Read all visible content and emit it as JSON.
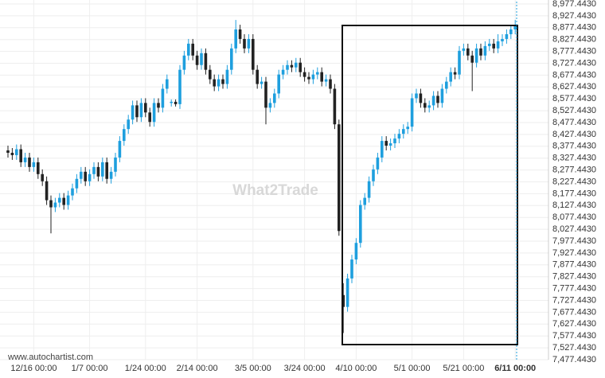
{
  "chart_data": {
    "type": "candlestick",
    "source": "www.autochartist.com",
    "watermark": "What2Trade",
    "categories": [
      null,
      null,
      null,
      null,
      null,
      null,
      "12/16 00:00",
      null,
      null,
      null,
      null,
      null,
      null,
      null,
      null,
      null,
      null,
      null,
      null,
      "1/7 00:00",
      null,
      null,
      null,
      null,
      null,
      null,
      null,
      null,
      null,
      null,
      null,
      null,
      "1/24 00:00",
      null,
      null,
      null,
      null,
      null,
      null,
      null,
      null,
      null,
      null,
      null,
      "2/14 00:00",
      null,
      null,
      null,
      null,
      null,
      null,
      null,
      null,
      null,
      null,
      null,
      null,
      "3/5 00:00",
      null,
      null,
      null,
      null,
      null,
      null,
      null,
      null,
      null,
      null,
      null,
      "3/24 00:00",
      null,
      null,
      null,
      null,
      null,
      null,
      null,
      null,
      null,
      null,
      null,
      "4/10 00:00",
      null,
      null,
      null,
      null,
      null,
      null,
      null,
      null,
      null,
      null,
      null,
      null,
      "5/1 00:00",
      null,
      null,
      null,
      null,
      null,
      null,
      null,
      null,
      null,
      null,
      null,
      "5/21 00:00",
      null,
      null,
      null,
      null,
      null,
      null,
      null,
      null,
      null,
      null,
      null,
      "6/11 00:00"
    ],
    "open": [
      8360,
      8350,
      8340,
      8365,
      8310,
      8330,
      8290,
      8310,
      8260,
      8230,
      8150,
      8120,
      8140,
      8160,
      8130,
      8170,
      8200,
      8240,
      8270,
      8230,
      8260,
      8290,
      8250,
      8310,
      8240,
      8270,
      8330,
      8400,
      8450,
      8490,
      8550,
      8500,
      8560,
      8520,
      8480,
      8560,
      8540,
      8620,
      8560,
      8565,
      8555,
      8700,
      8760,
      8810,
      8760,
      8720,
      8770,
      8700,
      8660,
      8630,
      8660,
      8640,
      8700,
      8790,
      8870,
      8830,
      8790,
      8830,
      8700,
      8640,
      8650,
      8540,
      8560,
      8600,
      8680,
      8700,
      8720,
      8710,
      8730,
      8690,
      8670,
      8660,
      8680,
      8690,
      8650,
      8660,
      8620,
      8470,
      7750,
      7700,
      7820,
      7900,
      7970,
      8130,
      8160,
      8230,
      8280,
      8330,
      8400,
      8380,
      8390,
      8410,
      8430,
      8450,
      8460,
      8580,
      8600,
      8560,
      8540,
      8550,
      8590,
      8560,
      8620,
      8650,
      8690,
      8680,
      8780,
      8790,
      8760,
      8730,
      8790,
      8760,
      8800,
      8810,
      8790,
      8820,
      8830,
      8850,
      8870
    ],
    "high": [
      8380,
      8370,
      8385,
      8385,
      8350,
      8350,
      8330,
      8330,
      8280,
      8250,
      8170,
      8160,
      8180,
      8180,
      8190,
      8220,
      8260,
      8290,
      8290,
      8280,
      8310,
      8310,
      8330,
      8330,
      8290,
      8350,
      8420,
      8470,
      8510,
      8570,
      8570,
      8580,
      8580,
      8540,
      8580,
      8580,
      8640,
      8680,
      8575,
      8575,
      8720,
      8780,
      8830,
      8830,
      8780,
      8790,
      8790,
      8720,
      8680,
      8680,
      8680,
      8720,
      8810,
      8910,
      8890,
      8850,
      8850,
      8850,
      8720,
      8670,
      8670,
      8580,
      8620,
      8700,
      8720,
      8740,
      8740,
      8750,
      8750,
      8710,
      8690,
      8700,
      8710,
      8710,
      8680,
      8680,
      8640,
      8490,
      7800,
      7840,
      7920,
      7990,
      8150,
      8180,
      8250,
      8300,
      8350,
      8420,
      8420,
      8410,
      8430,
      8450,
      8470,
      8480,
      8600,
      8620,
      8620,
      8580,
      8570,
      8610,
      8610,
      8640,
      8670,
      8710,
      8710,
      8800,
      8810,
      8810,
      8780,
      8810,
      8810,
      8820,
      8830,
      8830,
      8850,
      8850,
      8870,
      8890,
      8910
    ],
    "low": [
      8330,
      8320,
      8320,
      8290,
      8290,
      8270,
      8270,
      8240,
      8210,
      8130,
      8010,
      8100,
      8120,
      8110,
      8110,
      8150,
      8180,
      8220,
      8210,
      8210,
      8240,
      8230,
      8230,
      8220,
      8220,
      8250,
      8310,
      8380,
      8430,
      8470,
      8480,
      8480,
      8500,
      8460,
      8460,
      8520,
      8520,
      8600,
      8545,
      8545,
      8535,
      8680,
      8740,
      8740,
      8700,
      8700,
      8680,
      8640,
      8610,
      8610,
      8620,
      8620,
      8680,
      8770,
      8810,
      8770,
      8770,
      8680,
      8620,
      8620,
      8470,
      8520,
      8540,
      8580,
      8660,
      8680,
      8690,
      8690,
      8670,
      8650,
      8640,
      8640,
      8660,
      8630,
      8630,
      8600,
      8450,
      8000,
      7590,
      7680,
      7800,
      7880,
      7950,
      8110,
      8140,
      8210,
      8260,
      8310,
      8360,
      8360,
      8370,
      8390,
      8410,
      8430,
      8440,
      8560,
      8540,
      8520,
      8520,
      8530,
      8540,
      8540,
      8600,
      8630,
      8660,
      8660,
      8760,
      8740,
      8610,
      8710,
      8740,
      8740,
      8780,
      8770,
      8770,
      8800,
      8810,
      8830,
      8850
    ],
    "close": [
      8350,
      8340,
      8365,
      8310,
      8330,
      8290,
      8310,
      8260,
      8230,
      8150,
      8120,
      8140,
      8160,
      8130,
      8170,
      8200,
      8240,
      8270,
      8230,
      8260,
      8290,
      8250,
      8310,
      8240,
      8270,
      8330,
      8400,
      8450,
      8490,
      8550,
      8500,
      8560,
      8520,
      8480,
      8560,
      8540,
      8620,
      8660,
      8565,
      8555,
      8700,
      8760,
      8810,
      8760,
      8720,
      8770,
      8700,
      8660,
      8630,
      8660,
      8640,
      8700,
      8790,
      8870,
      8830,
      8790,
      8830,
      8700,
      8640,
      8650,
      8540,
      8560,
      8600,
      8680,
      8700,
      8720,
      8710,
      8730,
      8690,
      8670,
      8660,
      8680,
      8690,
      8650,
      8660,
      8620,
      8470,
      8020,
      7700,
      7820,
      7900,
      7970,
      8130,
      8160,
      8230,
      8280,
      8330,
      8400,
      8380,
      8390,
      8410,
      8430,
      8450,
      8460,
      8580,
      8600,
      8560,
      8540,
      8550,
      8590,
      8560,
      8620,
      8650,
      8690,
      8680,
      8780,
      8790,
      8760,
      8730,
      8790,
      8760,
      8800,
      8810,
      8790,
      8820,
      8830,
      8850,
      8870,
      8890
    ],
    "up_color": "#1e9fde",
    "down_color": "#222222",
    "ylim": [
      7477.443,
      8977.443
    ],
    "yticks": [
      {
        "value": 8977.443,
        "label": "8,977.4430"
      },
      {
        "value": 8927.443,
        "label": "8,927.4430"
      },
      {
        "value": 8877.443,
        "label": "8,877.4430"
      },
      {
        "value": 8827.443,
        "label": "8,827.4430"
      },
      {
        "value": 8777.443,
        "label": "8,777.4430"
      },
      {
        "value": 8727.443,
        "label": "8,727.4430"
      },
      {
        "value": 8677.443,
        "label": "8,677.4430"
      },
      {
        "value": 8627.443,
        "label": "8,627.4430"
      },
      {
        "value": 8577.443,
        "label": "8,577.4430"
      },
      {
        "value": 8527.443,
        "label": "8,527.4430"
      },
      {
        "value": 8477.443,
        "label": "8,477.4430"
      },
      {
        "value": 8427.443,
        "label": "8,427.4430"
      },
      {
        "value": 8377.443,
        "label": "8,377.4430"
      },
      {
        "value": 8327.443,
        "label": "8,327.4430"
      },
      {
        "value": 8277.443,
        "label": "8,277.4430"
      },
      {
        "value": 8227.443,
        "label": "8,227.4430"
      },
      {
        "value": 8177.443,
        "label": "8,177.4430"
      },
      {
        "value": 8127.443,
        "label": "8,127.4430"
      },
      {
        "value": 8077.443,
        "label": "8,077.4430"
      },
      {
        "value": 8027.443,
        "label": "8,027.4430"
      },
      {
        "value": 7977.443,
        "label": "7,977.4430"
      },
      {
        "value": 7927.443,
        "label": "7,927.4430"
      },
      {
        "value": 7877.443,
        "label": "7,877.4430"
      },
      {
        "value": 7827.443,
        "label": "7,827.4430"
      },
      {
        "value": 7777.443,
        "label": "7,777.4430"
      },
      {
        "value": 7727.443,
        "label": "7,727.4430"
      },
      {
        "value": 7677.443,
        "label": "7,677.4430"
      },
      {
        "value": 7627.443,
        "label": "7,627.4430"
      },
      {
        "value": 7577.443,
        "label": "7,577.4430"
      },
      {
        "value": 7527.443,
        "label": "7,527.4430"
      },
      {
        "value": 7477.443,
        "label": "7,477.4430"
      }
    ],
    "grid": true
  }
}
